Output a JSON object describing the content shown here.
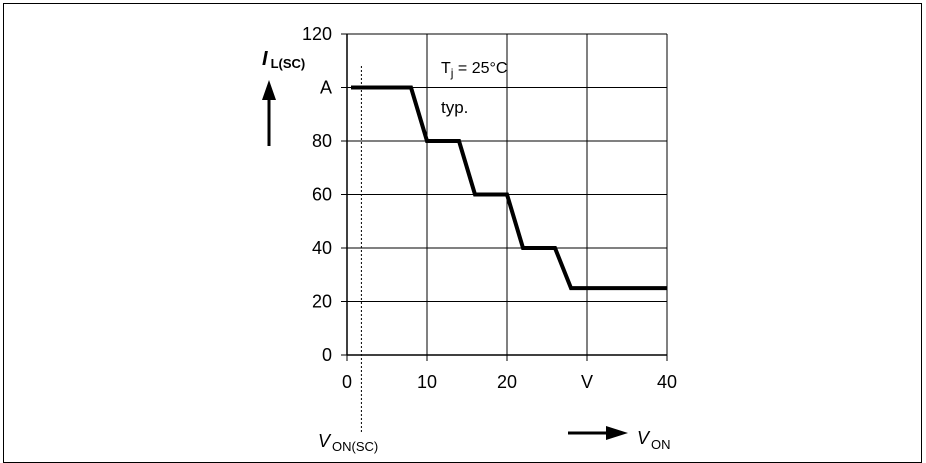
{
  "chart_data": {
    "type": "line",
    "x": [
      0.5,
      8,
      10,
      14,
      16,
      20,
      22,
      26,
      28,
      40
    ],
    "y": [
      100,
      100,
      80,
      80,
      60,
      60,
      40,
      40,
      25,
      25
    ],
    "xlim": [
      0,
      40
    ],
    "ylim": [
      0,
      120
    ],
    "x_ticks": [
      "0",
      "10",
      "20",
      "V",
      "40"
    ],
    "y_ticks": [
      "0",
      "20",
      "40",
      "60",
      "80",
      "A",
      "120"
    ],
    "ylabel_main": "I",
    "ylabel_sub": "L(SC)",
    "xlabel_main": "V",
    "xlabel_sub": "ON",
    "marker_label_main": "V",
    "marker_label_sub": "ON(SC)",
    "marker_x": 1.8,
    "annotation_temp_main": "T",
    "annotation_temp_sub": "j",
    "annotation_temp_rest": " = 25°C",
    "annotation_typ": "typ.",
    "grid": true
  }
}
